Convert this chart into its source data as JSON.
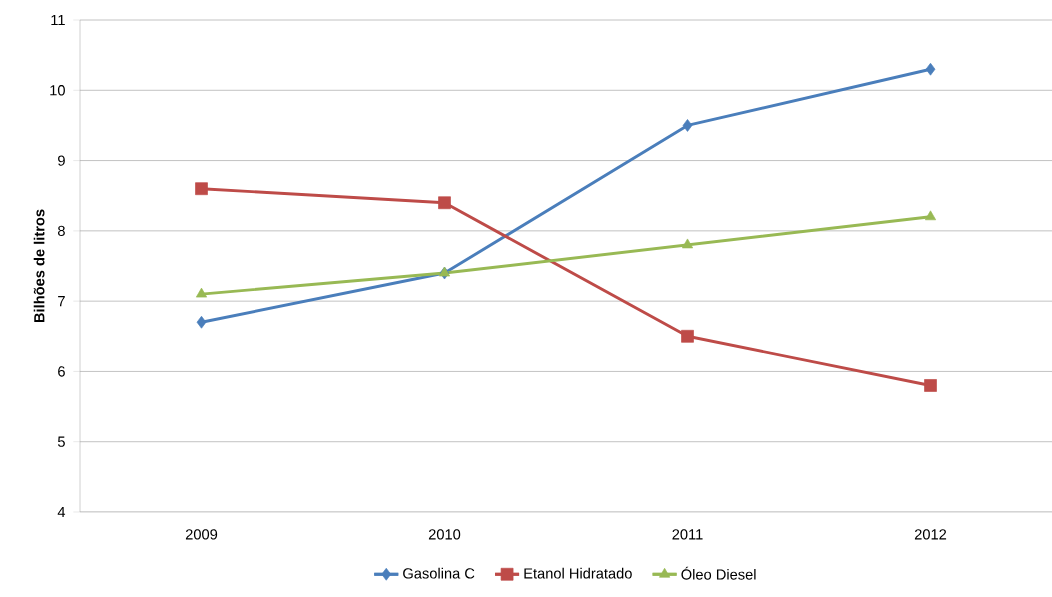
{
  "chart_data": {
    "type": "line",
    "ylabel": "Bilhões de litros",
    "categories": [
      "2009",
      "2010",
      "2011",
      "2012"
    ],
    "series": [
      {
        "name": "Gasolina C",
        "color": "#4a7ebb",
        "marker": "diamond",
        "values": [
          6.7,
          7.4,
          9.5,
          10.3
        ]
      },
      {
        "name": "Etanol Hidratado",
        "color": "#be4b48",
        "marker": "square",
        "values": [
          8.6,
          8.4,
          6.5,
          5.8
        ]
      },
      {
        "name": "Óleo Diesel",
        "color": "#98b954",
        "marker": "triangle",
        "values": [
          7.1,
          7.4,
          7.8,
          8.2
        ]
      }
    ],
    "ylim": [
      4,
      11
    ],
    "yticks": [
      4,
      5,
      6,
      7,
      8,
      9,
      10,
      11
    ],
    "grid": "y",
    "legend": "bottom",
    "line_style": "solid"
  }
}
